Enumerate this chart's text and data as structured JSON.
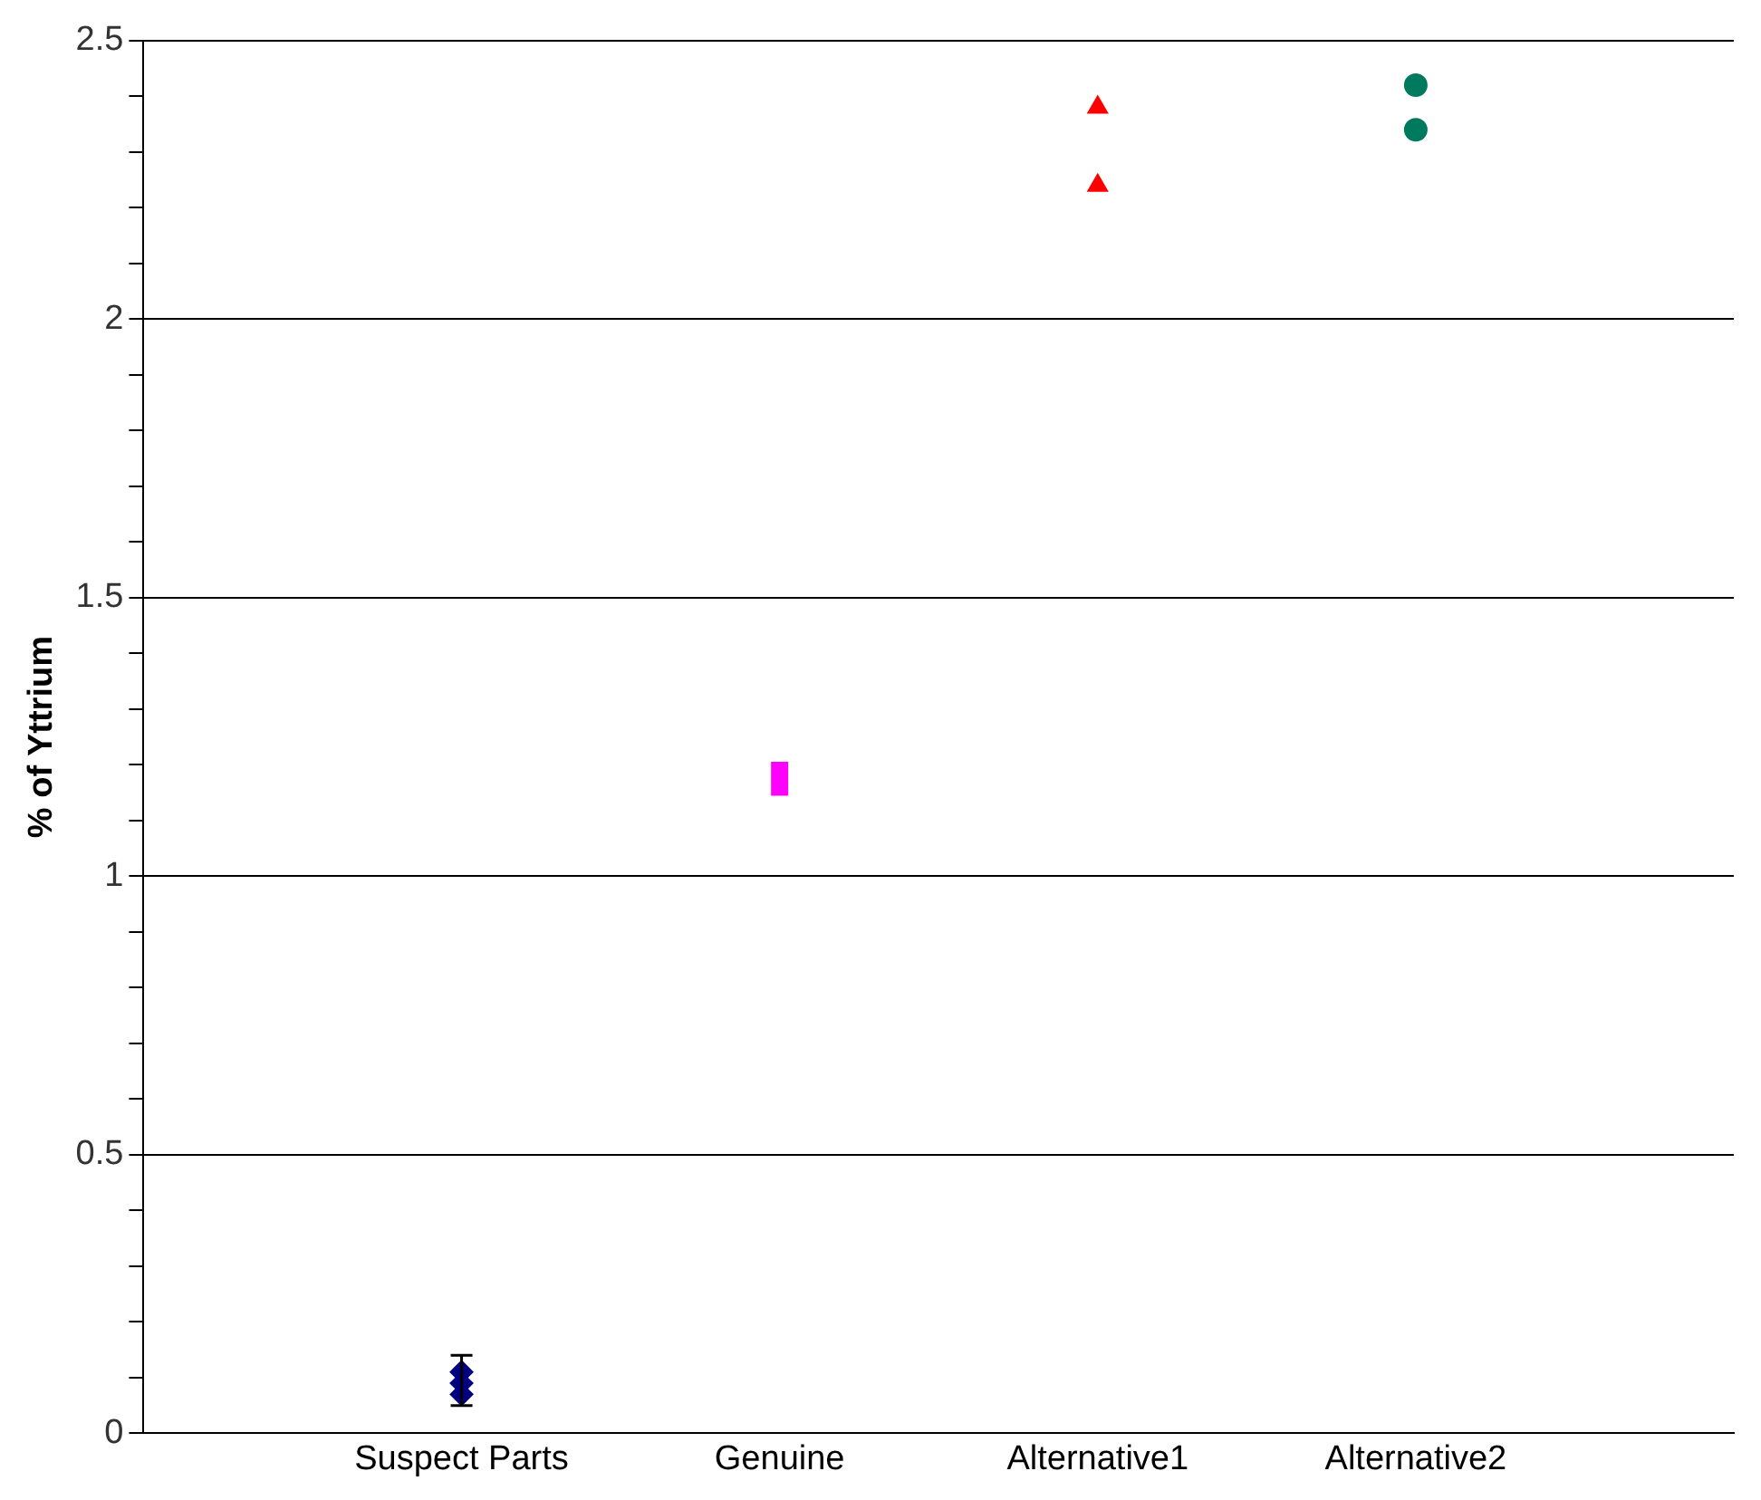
{
  "chart_data": {
    "type": "scatter",
    "ylabel": "% of Yttrium",
    "categories": [
      "Suspect Parts",
      "Genuine",
      "Alternative1",
      "Alternative2"
    ],
    "ylim": [
      0,
      2.5
    ],
    "yticks": [
      0,
      {
        "value": 0.1,
        "label": null
      },
      {
        "value": 0.2,
        "label": null
      },
      {
        "value": 0.3,
        "label": null
      },
      {
        "value": 0.4,
        "label": null
      },
      0.5,
      {
        "value": 0.6,
        "label": null
      },
      {
        "value": 0.7,
        "label": null
      },
      {
        "value": 0.8,
        "label": null
      },
      {
        "value": 0.9,
        "label": null
      },
      1,
      {
        "value": 1.1,
        "label": null
      },
      {
        "value": 1.2,
        "label": null
      },
      {
        "value": 1.3,
        "label": null
      },
      {
        "value": 1.4,
        "label": null
      },
      1.5,
      {
        "value": 1.6,
        "label": null
      },
      {
        "value": 1.7,
        "label": null
      },
      {
        "value": 1.8,
        "label": null
      },
      {
        "value": 1.9,
        "label": null
      },
      2,
      {
        "value": 2.1,
        "label": null
      },
      {
        "value": 2.2,
        "label": null
      },
      {
        "value": 2.3,
        "label": null
      },
      {
        "value": 2.4,
        "label": null
      },
      2.5
    ],
    "grid": "y",
    "legend": false,
    "series": [
      {
        "x": [
          "Suspect Parts",
          "Suspect Parts",
          "Suspect Parts"
        ],
        "values": [
          0.07,
          0.09,
          0.11
        ],
        "errors": [
          null,
          [
            0.05,
            0.14
          ],
          null
        ],
        "color": "#000080",
        "marker": "diamond"
      },
      {
        "x": [
          "Genuine",
          "Genuine"
        ],
        "values": [
          1.16,
          1.19
        ],
        "color": "#ff00ff",
        "marker": "square"
      },
      {
        "x": [
          "Alternative1",
          "Alternative1"
        ],
        "values": [
          2.38,
          2.24
        ],
        "color": "#ff0000",
        "marker": "triangle"
      },
      {
        "x": [
          "Alternative2",
          "Alternative2"
        ],
        "values": [
          2.42,
          2.34
        ],
        "color": "#007a5e",
        "marker": "circle"
      }
    ]
  }
}
